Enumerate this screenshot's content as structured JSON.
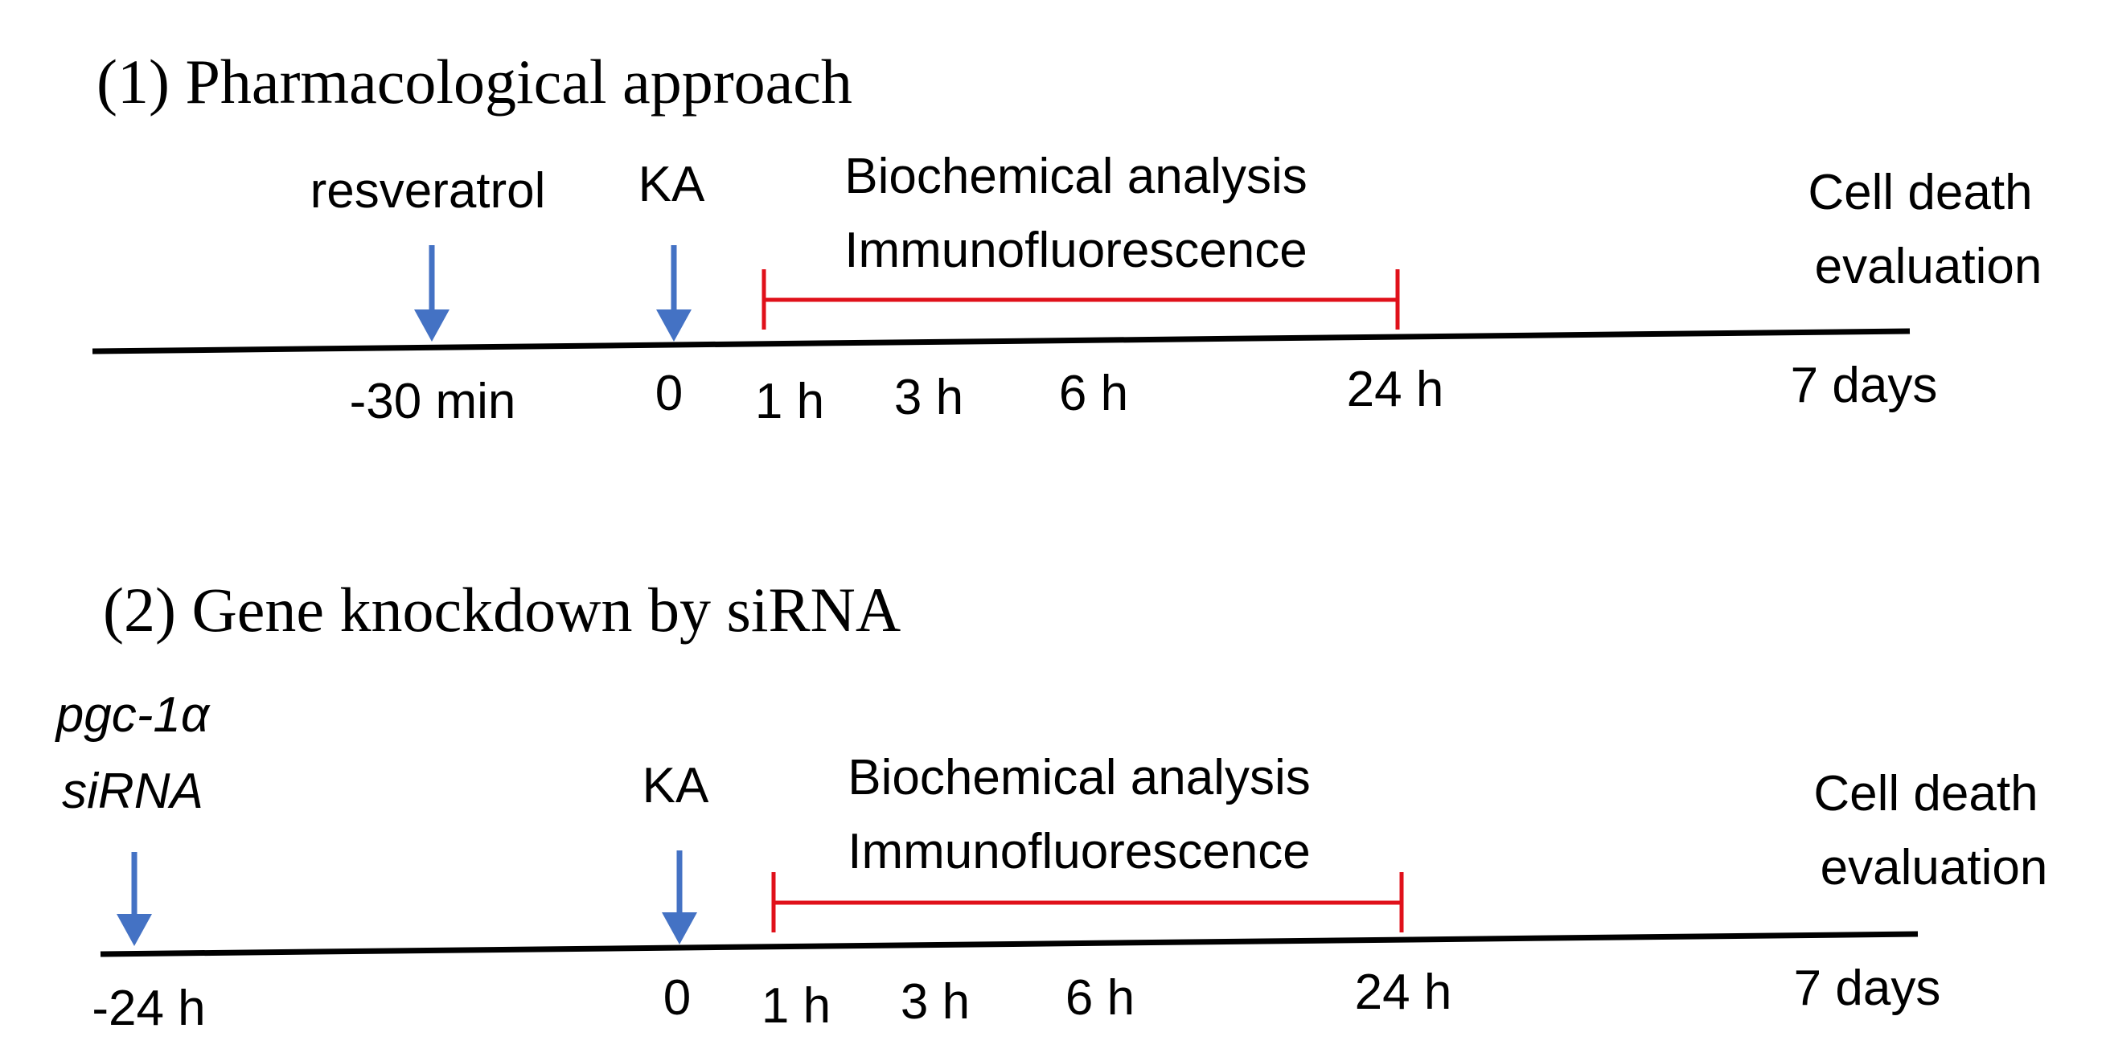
{
  "colors": {
    "timeline": "#000000",
    "arrow": "#4472C4",
    "bracket": "#E0101A",
    "text": "#000000"
  },
  "panel1": {
    "title": "(1) Pharmacological  approach",
    "treatment_label": "resveratrol",
    "ka_label": "KA",
    "analysis_line1": "Biochemical analysis",
    "analysis_line2": "Immunofluorescence",
    "outcome_line1": "Cell death",
    "outcome_line2": "evaluation",
    "ticks": {
      "t_pre": "-30 min",
      "t0": "0",
      "t1": "1 h",
      "t3": "3 h",
      "t6": "6 h",
      "t24": "24 h",
      "t7d": "7 days"
    }
  },
  "panel2": {
    "title": "(2) Gene knockdown  by siRNA",
    "treatment_line1": "pgc-1α",
    "treatment_line2": "siRNA",
    "ka_label": "KA",
    "analysis_line1": "Biochemical analysis",
    "analysis_line2": "Immunofluorescence",
    "outcome_line1": "Cell death",
    "outcome_line2": "evaluation",
    "ticks": {
      "t_pre": "-24 h",
      "t0": "0",
      "t1": "1 h",
      "t3": "3 h",
      "t6": "6 h",
      "t24": "24 h",
      "t7d": "7 days"
    }
  }
}
